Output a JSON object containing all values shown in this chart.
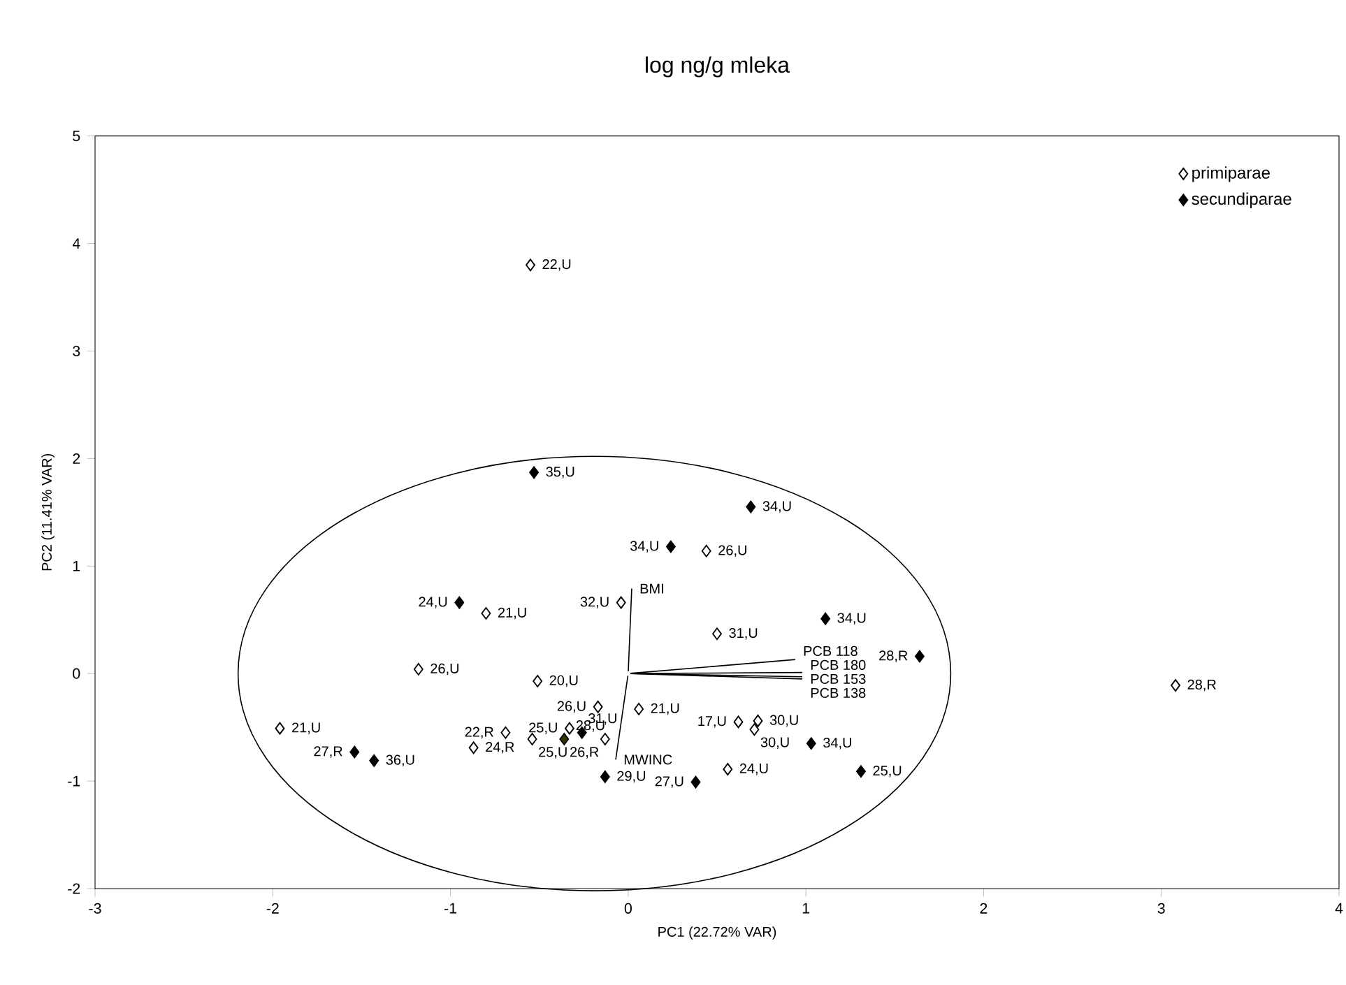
{
  "chart_data": {
    "type": "scatter",
    "title": "log ng/g mleka",
    "xlabel": "PC1 (22.72% VAR)",
    "ylabel": "PC2 (11.41% VAR)",
    "xlim": [
      -3,
      4
    ],
    "ylim": [
      -2,
      5
    ],
    "xticks": [
      -3,
      -2,
      -1,
      0,
      1,
      2,
      3,
      4
    ],
    "yticks": [
      -2,
      -1,
      0,
      1,
      2,
      3,
      4,
      5
    ],
    "legend": "top right",
    "series": [
      {
        "name": "primiparae",
        "marker": "diamond",
        "color": "#ffffff",
        "x": [
          -0.55,
          0.44,
          -0.04,
          -0.8,
          0.5,
          -1.18,
          -0.51,
          -0.17,
          0.06,
          -1.96,
          -0.69,
          -0.87,
          -0.54,
          -0.33,
          -0.13,
          0.62,
          0.73,
          0.71,
          0.56,
          3.08
        ],
        "values": [
          3.8,
          1.14,
          0.66,
          0.56,
          0.37,
          0.04,
          -0.07,
          -0.31,
          -0.33,
          -0.51,
          -0.55,
          -0.69,
          -0.61,
          -0.51,
          -0.61,
          -0.45,
          -0.44,
          -0.52,
          -0.89,
          -0.11
        ]
      },
      {
        "name": "secundiparae",
        "marker": "diamond",
        "color": "#000000",
        "colors": [
          "#000000",
          "#000000",
          "#000000",
          "#000000",
          "#000000",
          "#000000",
          "#000000",
          "#000000",
          "#333300",
          "#000000",
          "#000000",
          "#000000",
          "#000000",
          "#000000"
        ],
        "x": [
          -0.53,
          0.69,
          0.24,
          -0.95,
          1.11,
          1.64,
          -1.54,
          -1.43,
          -0.36,
          -0.26,
          -0.13,
          0.38,
          1.03,
          1.31
        ],
        "values": [
          1.87,
          1.55,
          1.18,
          0.66,
          0.51,
          0.16,
          -0.73,
          -0.81,
          -0.61,
          -0.55,
          -0.96,
          -1.01,
          -0.65,
          -0.91
        ]
      },
      {
        "name": "BMI",
        "type": "line",
        "color": "#000000",
        "x": [
          0,
          0.02
        ],
        "values": [
          0,
          0.79
        ]
      },
      {
        "name": "MWINC",
        "type": "line",
        "color": "#000000",
        "x": [
          0,
          -0.07
        ],
        "values": [
          0,
          -0.8
        ]
      },
      {
        "name": "PCB 118",
        "type": "line",
        "color": "#000000",
        "x": [
          0,
          0.94
        ],
        "values": [
          0,
          0.13
        ]
      },
      {
        "name": "PCB 180",
        "type": "line",
        "color": "#000000",
        "x": [
          0,
          0.98
        ],
        "values": [
          0,
          0.01
        ]
      },
      {
        "name": "PCB 153",
        "type": "line",
        "color": "#000000",
        "x": [
          0,
          0.98
        ],
        "values": [
          0,
          -0.03
        ]
      },
      {
        "name": "PCB 138",
        "type": "line",
        "color": "#000000",
        "x": [
          0,
          0.98
        ],
        "values": [
          0,
          -0.05
        ]
      }
    ],
    "annotations": [
      {
        "text": "22,U",
        "x": -0.55,
        "y": 3.8
      },
      {
        "text": "26,U",
        "x": 0.44,
        "y": 1.14
      },
      {
        "text": "32,U",
        "x": -0.04,
        "y": 0.66
      },
      {
        "text": "21,U",
        "x": -0.8,
        "y": 0.56
      },
      {
        "text": "31,U",
        "x": 0.5,
        "y": 0.37
      },
      {
        "text": "26,U",
        "x": -1.18,
        "y": 0.04
      },
      {
        "text": "20,U",
        "x": -0.51,
        "y": -0.07
      },
      {
        "text": "26,U",
        "x": -0.17,
        "y": -0.31
      },
      {
        "text": "21,U",
        "x": 0.06,
        "y": -0.33
      },
      {
        "text": "21,U",
        "x": -1.96,
        "y": -0.51
      },
      {
        "text": "22,R",
        "x": -0.69,
        "y": -0.55
      },
      {
        "text": "24,R",
        "x": -0.87,
        "y": -0.69
      },
      {
        "text": "25,U",
        "x": -0.54,
        "y": -0.61
      },
      {
        "text": "25,U",
        "x": -0.33,
        "y": -0.51
      },
      {
        "text": "26,R",
        "x": -0.13,
        "y": -0.61
      },
      {
        "text": "17,U",
        "x": 0.62,
        "y": -0.45
      },
      {
        "text": "30,U",
        "x": 0.73,
        "y": -0.44
      },
      {
        "text": "30,U",
        "x": 0.71,
        "y": -0.52
      },
      {
        "text": "24,U",
        "x": 0.56,
        "y": -0.89
      },
      {
        "text": "28,R",
        "x": 3.08,
        "y": -0.11
      },
      {
        "text": "35,U",
        "x": -0.53,
        "y": 1.87
      },
      {
        "text": "34,U",
        "x": 0.69,
        "y": 1.55
      },
      {
        "text": "34,U",
        "x": 0.24,
        "y": 1.18
      },
      {
        "text": "24,U",
        "x": -0.95,
        "y": 0.66
      },
      {
        "text": "34,U",
        "x": 1.11,
        "y": 0.51
      },
      {
        "text": "28,R",
        "x": 1.64,
        "y": 0.16
      },
      {
        "text": "27,R",
        "x": -1.54,
        "y": -0.73
      },
      {
        "text": "36,U",
        "x": -1.43,
        "y": -0.81
      },
      {
        "text": "28,U",
        "x": -0.36,
        "y": -0.61
      },
      {
        "text": "31,U",
        "x": -0.26,
        "y": -0.55
      },
      {
        "text": "29,U",
        "x": -0.13,
        "y": -0.96
      },
      {
        "text": "27,U",
        "x": 0.38,
        "y": -1.01
      },
      {
        "text": "34,U",
        "x": 1.03,
        "y": -0.65
      },
      {
        "text": "25,U",
        "x": 1.31,
        "y": -0.91
      }
    ]
  }
}
